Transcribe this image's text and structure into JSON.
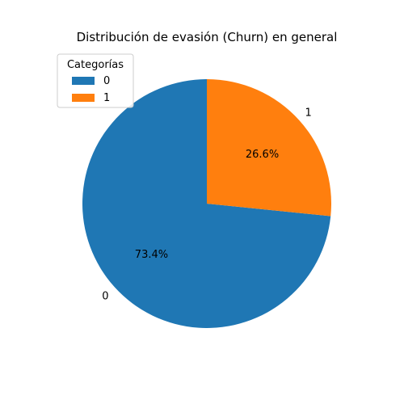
{
  "chart_data": {
    "type": "pie",
    "title": "Distribución de evasión (Churn) en general",
    "categories": [
      "0",
      "1"
    ],
    "values": [
      73.4,
      26.6
    ],
    "value_labels": [
      "73.4%",
      "26.6%"
    ],
    "colors": [
      "#1f77b4",
      "#ff7f0e"
    ],
    "start_angle_deg": 90,
    "direction": "counterclockwise",
    "legend": {
      "title": "Categorías",
      "entries": [
        "0",
        "1"
      ],
      "placement": "upper-left"
    }
  }
}
